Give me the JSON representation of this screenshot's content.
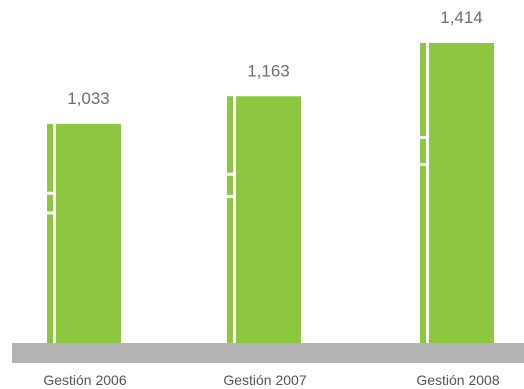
{
  "chart_data": {
    "type": "bar",
    "title": "",
    "xlabel": "",
    "ylabel": "",
    "categories": [
      "Gestión 2006",
      "Gestión 2007",
      "Gestión 2008"
    ],
    "values": [
      1033,
      1163,
      1414
    ],
    "value_labels": [
      "1,033",
      "1,163",
      "1,414"
    ],
    "ylim": [
      0,
      1414
    ],
    "grid": false,
    "legend": "none",
    "colors": {
      "bar": "#8dc63f",
      "baseline": "#b3b3b3",
      "value_text": "#6e6e6e",
      "category_text": "#555555"
    }
  }
}
